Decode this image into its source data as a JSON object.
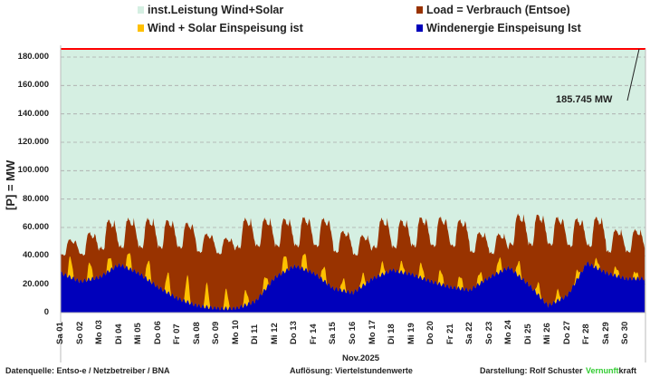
{
  "legend": [
    {
      "label": "inst.Leistung Wind+Solar",
      "color": "#d5efe2"
    },
    {
      "label": "Load =  Verbrauch (Entsoe)",
      "color": "#993300"
    },
    {
      "label": "Wind + Solar Einspeisung ist",
      "color": "#ffc000"
    },
    {
      "label": "Windenergie Einspeisung Ist",
      "color": "#0000bb"
    }
  ],
  "footer": {
    "source": "Datenquelle:  Entso-e  / Netzbetreiber / BNA",
    "resolution": "Auflösung: Viertelstundenwerte",
    "author": "Darstellung:  Rolf Schuster",
    "brand_green": "Vernunft",
    "brand_black": "kraft",
    "brand_color": "#33cc33"
  },
  "chart_data": {
    "type": "area",
    "title": "",
    "xlabel": "Nov.2025",
    "ylabel": "[P] = MW",
    "ylim": [
      0,
      190000
    ],
    "yticks": [
      "0",
      "20.000",
      "40.000",
      "60.000",
      "80.000",
      "100.000",
      "120.000",
      "140.000",
      "160.000",
      "180.000"
    ],
    "ytick_values": [
      0,
      20000,
      40000,
      60000,
      80000,
      100000,
      120000,
      140000,
      160000,
      180000
    ],
    "grid": true,
    "categories": [
      "Sa 01",
      "So 02",
      "Mo 03",
      "Di 04",
      "Mi 05",
      "Do 06",
      "Fr 07",
      "Sa 08",
      "So 09",
      "Mo 10",
      "Di 11",
      "Mi 12",
      "Do 13",
      "Fr 14",
      "Sa 15",
      "So 16",
      "Mo 17",
      "Di 18",
      "Mi 19",
      "Do 20",
      "Fr 21",
      "Sa 22",
      "So 23",
      "Mo 24",
      "Di 25",
      "Mi 26",
      "Do 27",
      "Fr 28",
      "Sa 29",
      "So 30"
    ],
    "installed_capacity": {
      "name": "inst.Leistung Wind+Solar",
      "value": 185745,
      "annotation": "185.745 MW"
    },
    "series": [
      {
        "name": "Load =  Verbrauch (Entsoe)",
        "daily_peak": [
          52000,
          57000,
          66000,
          67000,
          67000,
          66000,
          64000,
          56000,
          53000,
          67000,
          67000,
          67000,
          68000,
          67000,
          58000,
          55000,
          67000,
          66000,
          68000,
          68000,
          66000,
          57000,
          56000,
          70000,
          70000,
          68000,
          67000,
          68000,
          59000,
          59000
        ],
        "daily_min": [
          40000,
          40000,
          44000,
          45000,
          45000,
          45000,
          45000,
          42000,
          41000,
          45000,
          46000,
          46000,
          46000,
          46000,
          42000,
          40000,
          45000,
          45000,
          46000,
          46000,
          46000,
          42000,
          41000,
          47000,
          47000,
          47000,
          46000,
          46000,
          42000,
          42000
        ]
      },
      {
        "name": "Windenergie Einspeisung Ist",
        "daily": [
          28000,
          22000,
          25000,
          34000,
          28000,
          18000,
          10000,
          5000,
          3000,
          3000,
          8000,
          25000,
          33000,
          28000,
          17000,
          14000,
          24000,
          30000,
          27000,
          22000,
          18000,
          16000,
          25000,
          32000,
          20000,
          5000,
          12000,
          35000,
          28000,
          24000
        ]
      },
      {
        "name": "Wind + Solar Einspeisung ist",
        "solar_peak": [
          14000,
          12000,
          10000,
          12000,
          14000,
          14000,
          18000,
          16000,
          13000,
          10000,
          9000,
          12000,
          12000,
          10000,
          8000,
          8000,
          8000,
          7000,
          10000,
          10000,
          9000,
          8000,
          10000,
          10000,
          8000,
          7000,
          6000,
          6000,
          6000,
          5000
        ]
      }
    ]
  }
}
